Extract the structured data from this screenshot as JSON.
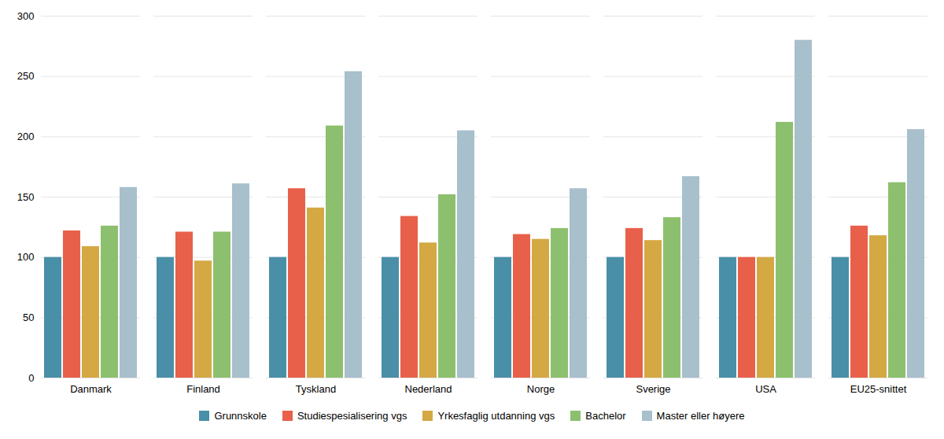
{
  "chart_data": {
    "type": "bar",
    "categories": [
      "Danmark",
      "Finland",
      "Tyskland",
      "Nederland",
      "Norge",
      "Sverige",
      "USA",
      "EU25-snittet"
    ],
    "series": [
      {
        "name": "Grunnskole",
        "color": "#4a8fa8",
        "values": [
          100,
          100,
          100,
          100,
          100,
          100,
          100,
          100
        ]
      },
      {
        "name": "Studiespesialisering vgs",
        "color": "#e8604a",
        "values": [
          122,
          121,
          157,
          134,
          119,
          124,
          100,
          126
        ]
      },
      {
        "name": "Yrkesfaglig utdanning vgs",
        "color": "#d4a843",
        "values": [
          109,
          97,
          141,
          112,
          115,
          114,
          100,
          118
        ]
      },
      {
        "name": "Bachelor",
        "color": "#8dc06e",
        "values": [
          126,
          121,
          209,
          152,
          124,
          133,
          212,
          162
        ]
      },
      {
        "name": "Master eller høyere",
        "color": "#a8bfcc",
        "values": [
          158,
          161,
          254,
          205,
          157,
          167,
          280,
          206
        ]
      }
    ],
    "ylim": [
      0,
      300
    ],
    "yticks": [
      0,
      50,
      100,
      150,
      200,
      250,
      300
    ],
    "grid": true,
    "legend": "bottom"
  }
}
